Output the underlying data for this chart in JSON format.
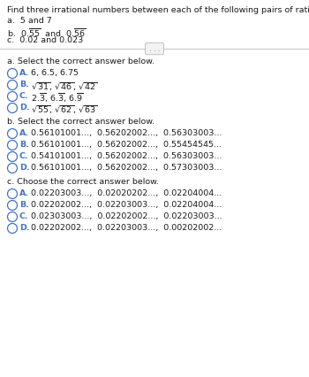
{
  "title": "Find three irrational numbers between each of the following pairs of rational numbers.",
  "bg_color": "#ffffff",
  "text_color": "#1a1a1a",
  "label_color": "#4472c4",
  "circle_color": "#4472c4",
  "font_size_title": 6.8,
  "font_size_body": 6.8,
  "font_size_option": 6.8,
  "section_a_header": "a. Select the correct answer below.",
  "section_b_header": "b. Select the correct answer below.",
  "section_c_header": "c. Choose the correct answer below.",
  "option_texts_a": [
    "6, 6.5, 6.75",
    "sqrt31_46_42",
    "repeating_235",
    "sqrt55_62_63"
  ],
  "option_texts_b": [
    "0.56101001...,  0.56202002...,  0.56303003...",
    "0.56101001...,  0.56202002...,  0.55454545...",
    "0.54101001...,  0.56202002...,  0.56303003...",
    "0.56101001...,  0.56202002...,  0.57303003..."
  ],
  "option_texts_c": [
    "0.02203003...,  0.02020202...,  0.02204004...",
    "0.02202002...,  0.02203003...,  0.02204004...",
    "0.02303003...,  0.02202002...,  0.02203003...",
    "0.02202002...,  0.02203003...,  0.00202002..."
  ]
}
